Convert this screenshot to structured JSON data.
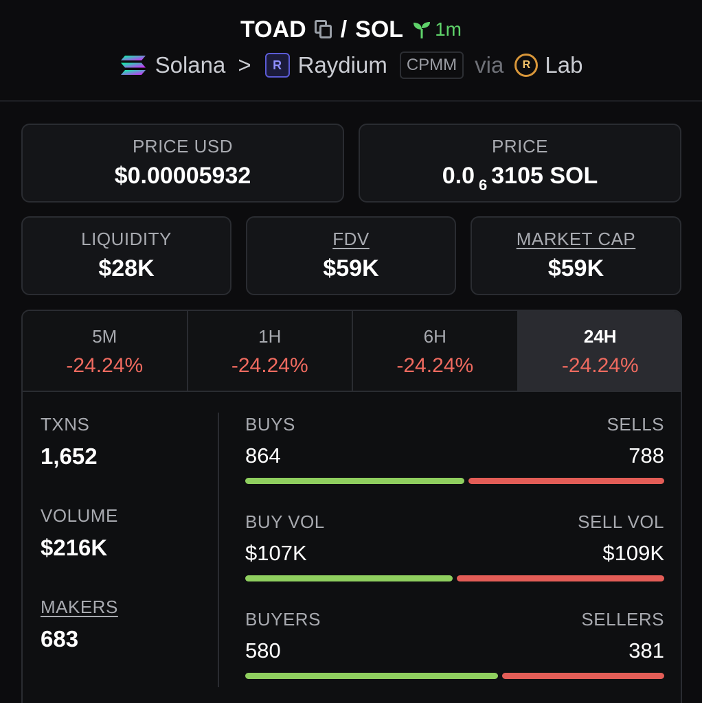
{
  "header": {
    "token": "TOAD",
    "separator": "/",
    "quote": "SOL",
    "age": "1m",
    "chain": "Solana",
    "chevron": ">",
    "dex": "Raydium",
    "dex_badge_letter": "R",
    "pool_type": "CPMM",
    "via": "via",
    "launchpad": "Lab",
    "launchpad_badge_letter": "R",
    "icons": [
      "copy-icon",
      "sprout-icon",
      "solana-logo-icon",
      "raydium-logo-icon",
      "lab-logo-icon"
    ],
    "colors": {
      "age": "#5fd36a",
      "negative": "#ef6a5f",
      "buy_bar": "#8fcf5f",
      "sell_bar": "#e35d57"
    }
  },
  "price_usd": {
    "label": "PRICE USD",
    "value": "$0.00005932"
  },
  "price_native": {
    "label": "PRICE",
    "prefix": "0.0",
    "zeros_sub": "6",
    "digits": "3105",
    "unit": "SOL"
  },
  "metrics": [
    {
      "label": "LIQUIDITY",
      "value": "$28K"
    },
    {
      "label": "FDV",
      "value": "$59K"
    },
    {
      "label": "MARKET CAP",
      "value": "$59K"
    }
  ],
  "timeframes": [
    {
      "label": "5M",
      "change": "-24.24%"
    },
    {
      "label": "1H",
      "change": "-24.24%"
    },
    {
      "label": "6H",
      "change": "-24.24%"
    },
    {
      "label": "24H",
      "change": "-24.24%",
      "selected": true
    }
  ],
  "stats": {
    "txns": {
      "label": "TXNS",
      "value": "1,652"
    },
    "volume": {
      "label": "VOLUME",
      "value": "$216K"
    },
    "makers": {
      "label": "MAKERS",
      "value": "683"
    }
  },
  "breakdown": [
    {
      "left_label": "BUYS",
      "left_value": "864",
      "right_label": "SELLS",
      "right_value": "788",
      "buy_fraction": 0.523
    },
    {
      "left_label": "BUY VOL",
      "left_value": "$107K",
      "right_label": "SELL VOL",
      "right_value": "$109K",
      "buy_fraction": 0.495
    },
    {
      "left_label": "BUYERS",
      "left_value": "580",
      "right_label": "SELLERS",
      "right_value": "381",
      "buy_fraction": 0.604
    }
  ]
}
